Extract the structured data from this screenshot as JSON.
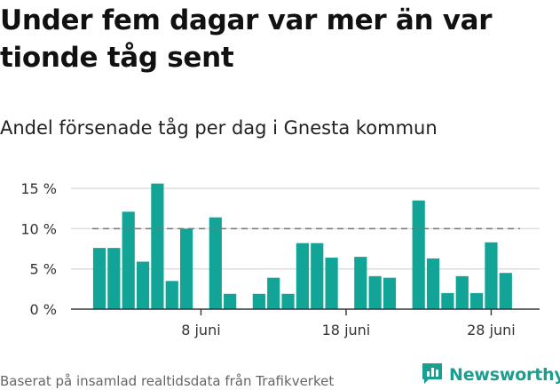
{
  "title": "Under fem dagar var mer än var tionde tåg sent",
  "subtitle": "Andel försenade tåg per dag i Gnesta kommun",
  "footer": "Baserat på insamlad realtidsdata från Trafikverket",
  "logo_text": "Newsworthy",
  "colors": {
    "bar": "#12a497",
    "grid": "#dddddd",
    "axis": "#333333",
    "reference": "#777777",
    "brand": "#1a9e8f"
  },
  "chart_data": {
    "type": "bar",
    "xlabel": "",
    "ylabel": "",
    "ylim": [
      0,
      16
    ],
    "y_ticks": [
      {
        "value": 0,
        "label": "0 %"
      },
      {
        "value": 5,
        "label": "5 %"
      },
      {
        "value": 10,
        "label": "10 %"
      },
      {
        "value": 15,
        "label": "15 %"
      }
    ],
    "x_ticks": [
      {
        "day": 8,
        "label": "8 juni"
      },
      {
        "day": 18,
        "label": "18 juni"
      },
      {
        "day": 28,
        "label": "28 juni"
      }
    ],
    "reference_line": 10,
    "days": [
      1,
      2,
      3,
      4,
      5,
      6,
      7,
      8,
      9,
      10,
      11,
      12,
      13,
      14,
      15,
      16,
      17,
      18,
      19,
      20,
      21,
      22,
      23,
      24,
      25,
      26,
      27,
      28,
      29
    ],
    "values": [
      7.6,
      7.6,
      12.1,
      5.9,
      15.6,
      3.5,
      10.0,
      0,
      11.4,
      1.9,
      0,
      1.9,
      3.9,
      1.9,
      8.2,
      8.2,
      6.4,
      0,
      6.5,
      4.1,
      3.9,
      0,
      13.5,
      6.3,
      2.0,
      4.1,
      2.0,
      8.3,
      4.5
    ]
  }
}
